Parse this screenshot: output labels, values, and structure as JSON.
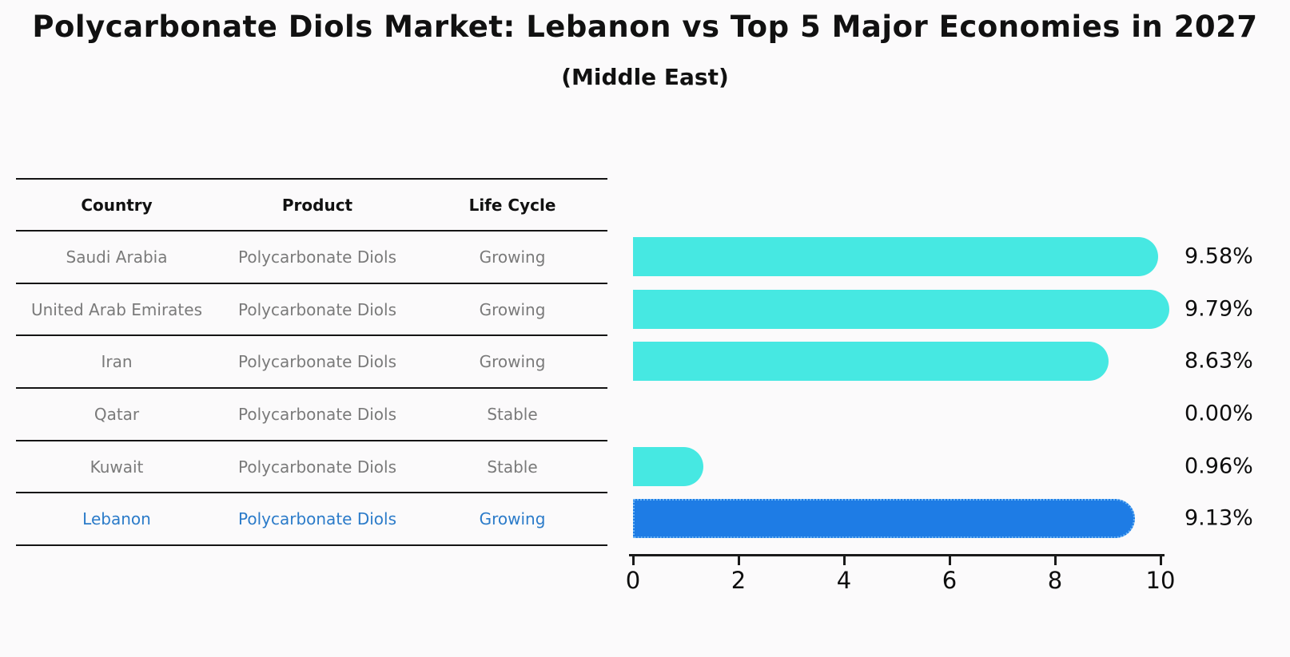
{
  "title": "Polycarbonate Diols Market: Lebanon vs Top 5 Major Economies in 2027",
  "subtitle": "(Middle East)",
  "colors": {
    "bar_default": "#46e8e2",
    "bar_highlight": "#1e7ce5",
    "bar_highlight_border": "#6cb5f5",
    "highlight_text": "#2b7bc9",
    "row_text": "#7a7a7a",
    "axis": "#1a1a1a"
  },
  "table": {
    "headers": {
      "country": "Country",
      "product": "Product",
      "life_cycle": "Life Cycle"
    },
    "rows": [
      {
        "country": "Saudi Arabia",
        "product": "Polycarbonate Diols",
        "life_cycle": "Growing"
      },
      {
        "country": "United Arab Emirates",
        "product": "Polycarbonate Diols",
        "life_cycle": "Growing"
      },
      {
        "country": "Iran",
        "product": "Polycarbonate Diols",
        "life_cycle": "Growing"
      },
      {
        "country": "Qatar",
        "product": "Polycarbonate Diols",
        "life_cycle": "Stable"
      },
      {
        "country": "Kuwait",
        "product": "Polycarbonate Diols",
        "life_cycle": "Stable"
      },
      {
        "country": "Lebanon",
        "product": "Polycarbonate Diols",
        "life_cycle": "Growing"
      }
    ]
  },
  "chart_data": {
    "type": "bar",
    "orientation": "horizontal",
    "title": "Polycarbonate Diols Market: Lebanon vs Top 5 Major Economies in 2027",
    "subtitle": "(Middle East)",
    "categories": [
      "Saudi Arabia",
      "United Arab Emirates",
      "Iran",
      "Qatar",
      "Kuwait",
      "Lebanon"
    ],
    "values": [
      9.58,
      9.79,
      8.63,
      0.0,
      0.96,
      9.13
    ],
    "value_labels": [
      "9.58%",
      "9.79%",
      "8.63%",
      "0.00%",
      "0.96%",
      "9.13%"
    ],
    "highlight_index": 5,
    "xlabel": "",
    "ylabel": "",
    "xlim": [
      0,
      10
    ],
    "xticks": [
      "0",
      "2",
      "4",
      "6",
      "8",
      "10"
    ],
    "grid": false,
    "legend": false
  }
}
